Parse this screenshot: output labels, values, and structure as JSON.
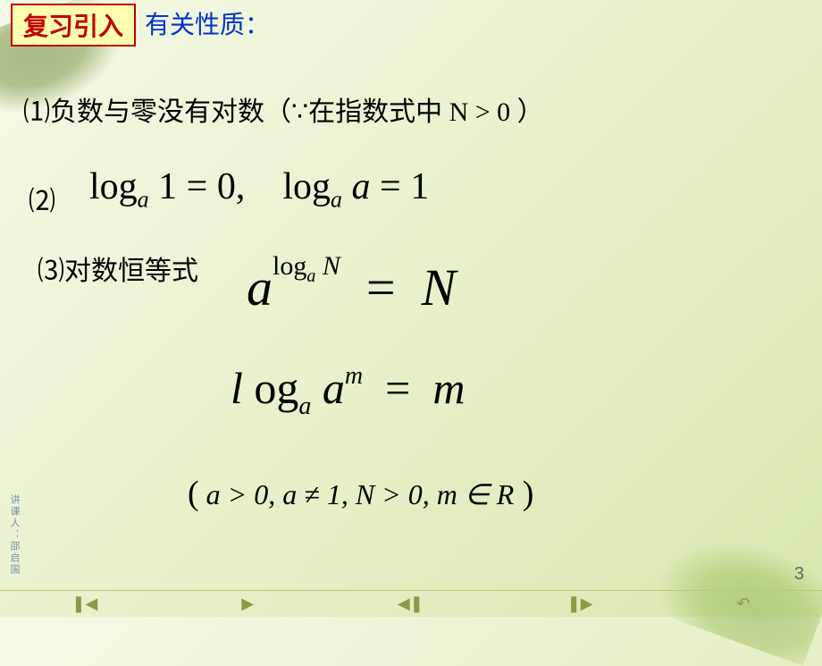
{
  "badge": "复习引入",
  "title": "有关性质：",
  "point1": {
    "num": "⑴",
    "text": "负数与零没有对数（",
    "because": "∵",
    "text2": "在指数式中 N > 0 ）"
  },
  "point2": {
    "num": "⑵"
  },
  "point3": {
    "num": "⑶",
    "text": "对数恒等式"
  },
  "formula1": {
    "log": "log",
    "sub_a": "a",
    "one": " 1 ",
    "eq": "=",
    "zero": " 0,",
    "gap": "    ",
    "a": " a ",
    "one2": " 1"
  },
  "formula2": {
    "a": "a",
    "exp_log": "log",
    "exp_sub": "a",
    "exp_N": " N",
    "eq": "  =  ",
    "N": "N"
  },
  "formula3": {
    "l": "l ",
    "og": "og",
    "sub_a": "a",
    "sp": " ",
    "a": "a",
    "sup_m": "m",
    "eq": "  =  ",
    "m": "m"
  },
  "condition": {
    "open": "(",
    "body": " a > 0, a ≠ 1, N > 0, m ∈ R",
    "close": " )"
  },
  "page": "3",
  "vert": "讲课人：邵启国",
  "nav": {
    "first": "❚◀",
    "back": "▶",
    "prev": "◀❚",
    "next": "❚▶",
    "return": "↶"
  },
  "colors": {
    "badge_border": "#c00000",
    "badge_bg": "#ffffb0",
    "title_color": "#0033cc"
  }
}
